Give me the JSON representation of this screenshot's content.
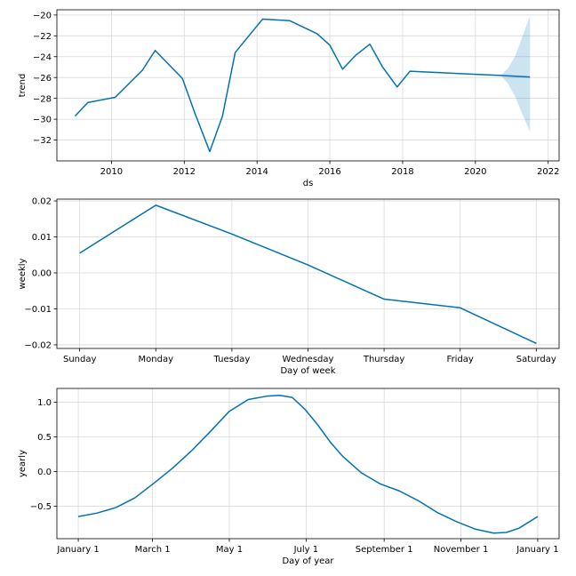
{
  "chart_data": [
    {
      "type": "line",
      "xlabel": "ds",
      "ylabel": "trend",
      "xlim": [
        2008.5,
        2022.3
      ],
      "ylim": [
        -34.0,
        -19.5
      ],
      "xticks": [
        2010,
        2012,
        2014,
        2016,
        2018,
        2020,
        2022
      ],
      "xtick_labels": [
        "2010",
        "2012",
        "2014",
        "2016",
        "2018",
        "2020",
        "2022"
      ],
      "yticks": [
        -32,
        -30,
        -28,
        -26,
        -24,
        -22,
        -20
      ],
      "ytick_labels": [
        "−32",
        "−30",
        "−28",
        "−26",
        "−24",
        "−22",
        "−20"
      ],
      "line_color": "#0072B2",
      "band_color": "#0072B2",
      "grid": true,
      "series": [
        {
          "x": [
            2009.0,
            2009.35,
            2010.1,
            2010.85,
            2011.2,
            2011.95,
            2012.3,
            2012.7,
            2013.05,
            2013.4,
            2014.15,
            2014.9,
            2015.65,
            2016.0,
            2016.35,
            2016.7,
            2017.1,
            2017.45,
            2017.85,
            2018.2,
            2020.7,
            2021.5
          ],
          "values": [
            -29.7,
            -28.4,
            -27.9,
            -25.3,
            -23.4,
            -26.1,
            -29.5,
            -33.1,
            -29.7,
            -23.6,
            -20.4,
            -20.55,
            -21.8,
            -22.9,
            -25.2,
            -23.9,
            -22.8,
            -25.0,
            -26.9,
            -25.4,
            -25.8,
            -25.95
          ]
        }
      ],
      "uncertainty": {
        "x": [
          2020.7,
          2020.9,
          2021.1,
          2021.3,
          2021.5
        ],
        "upper": [
          -25.8,
          -25.1,
          -23.9,
          -22.0,
          -20.1
        ],
        "lower": [
          -25.8,
          -26.6,
          -27.9,
          -29.6,
          -31.2
        ]
      }
    },
    {
      "type": "line",
      "xlabel": "Day of week",
      "ylabel": "weekly",
      "categories": [
        "Sunday",
        "Monday",
        "Tuesday",
        "Wednesday",
        "Thursday",
        "Friday",
        "Saturday"
      ],
      "xlim": [
        -0.3,
        6.3
      ],
      "ylim": [
        -0.021,
        0.0205
      ],
      "yticks": [
        -0.02,
        -0.01,
        0.0,
        0.01,
        0.02
      ],
      "ytick_labels": [
        "−0.02",
        "−0.01",
        "0.00",
        "0.01",
        "0.02"
      ],
      "line_color": "#0072B2",
      "grid": true,
      "series": [
        {
          "values": [
            0.0055,
            0.0188,
            0.0108,
            0.0022,
            -0.0073,
            -0.0097,
            -0.0196
          ]
        }
      ]
    },
    {
      "type": "line",
      "xlabel": "Day of year",
      "ylabel": "yearly",
      "xlim": [
        -17,
        382
      ],
      "ylim": [
        -0.97,
        1.2
      ],
      "xticks": [
        0,
        59,
        120,
        181,
        243,
        304,
        365
      ],
      "xtick_labels": [
        "January 1",
        "March 1",
        "May 1",
        "July 1",
        "September 1",
        "November 1",
        "January 1"
      ],
      "yticks": [
        -0.5,
        0.0,
        0.5,
        1.0
      ],
      "ytick_labels": [
        "−0.5",
        "0.0",
        "0.5",
        "1.0"
      ],
      "line_color": "#0072B2",
      "grid": true,
      "series": [
        {
          "x": [
            0,
            15,
            30,
            45,
            60,
            75,
            90,
            105,
            120,
            135,
            150,
            160,
            170,
            180,
            190,
            200,
            210,
            225,
            240,
            255,
            270,
            285,
            300,
            315,
            330,
            340,
            350,
            365
          ],
          "values": [
            -0.65,
            -0.6,
            -0.52,
            -0.38,
            -0.17,
            0.05,
            0.3,
            0.58,
            0.87,
            1.04,
            1.09,
            1.1,
            1.07,
            0.9,
            0.68,
            0.43,
            0.22,
            -0.02,
            -0.18,
            -0.28,
            -0.42,
            -0.59,
            -0.72,
            -0.83,
            -0.89,
            -0.88,
            -0.82,
            -0.65
          ]
        }
      ]
    }
  ]
}
